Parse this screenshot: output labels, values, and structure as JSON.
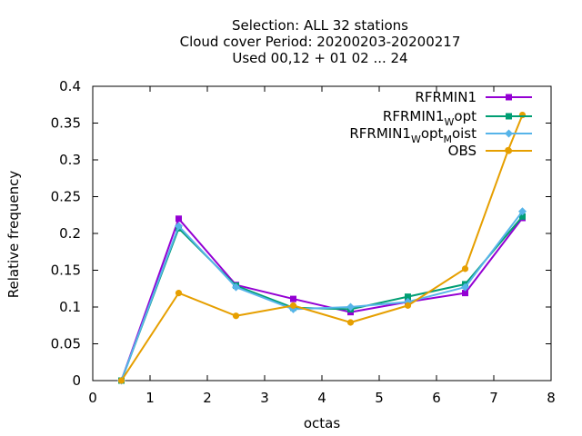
{
  "chart_data": {
    "type": "line",
    "title_lines": [
      "Selection: ALL      32 stations",
      "Cloud cover  Period: 20200203-20200217",
      "Used  00,12  + 01 02 ... 24"
    ],
    "xlabel": "octas",
    "ylabel": "Relative frequency",
    "xlim": [
      0,
      8
    ],
    "ylim": [
      0,
      0.4
    ],
    "xticks": [
      0,
      1,
      2,
      3,
      4,
      5,
      6,
      7,
      8
    ],
    "xtick_labels": [
      "0",
      "1",
      "2",
      "3",
      "4",
      "5",
      "6",
      "7",
      "8"
    ],
    "yticks": [
      0,
      0.05,
      0.1,
      0.15,
      0.2,
      0.25,
      0.3,
      0.35,
      0.4
    ],
    "ytick_labels": [
      "0",
      "0.05",
      "0.1",
      "0.15",
      "0.2",
      "0.25",
      "0.3",
      "0.35",
      "0.4"
    ],
    "grid": false,
    "legend_position": "top-right",
    "series": [
      {
        "name": "RFRMIN1",
        "legend_parts": [
          {
            "text": "RFRMIN1",
            "sub": false
          }
        ],
        "color": "#9400d3",
        "marker": "square",
        "x": [
          0.5,
          1.5,
          2.5,
          3.5,
          4.5,
          5.5,
          6.5,
          7.5
        ],
        "y": [
          0.0,
          0.22,
          0.13,
          0.111,
          0.093,
          0.107,
          0.119,
          0.221
        ]
      },
      {
        "name": "RFRMIN1Wopt",
        "legend_parts": [
          {
            "text": "RFRMIN1",
            "sub": false
          },
          {
            "text": "W",
            "sub": true
          },
          {
            "text": "opt",
            "sub": false
          }
        ],
        "color": "#009e73",
        "marker": "square",
        "x": [
          0.5,
          1.5,
          2.5,
          3.5,
          4.5,
          5.5,
          6.5,
          7.5
        ],
        "y": [
          0.0,
          0.207,
          0.129,
          0.099,
          0.097,
          0.114,
          0.131,
          0.223
        ]
      },
      {
        "name": "RFRMIN1WoptMoist",
        "legend_parts": [
          {
            "text": "RFRMIN1",
            "sub": false
          },
          {
            "text": "W",
            "sub": true
          },
          {
            "text": "opt",
            "sub": false
          },
          {
            "text": "M",
            "sub": true
          },
          {
            "text": "oist",
            "sub": false
          }
        ],
        "color": "#56b4e9",
        "marker": "diamond",
        "x": [
          0.5,
          1.5,
          2.5,
          3.5,
          4.5,
          5.5,
          6.5,
          7.5
        ],
        "y": [
          0.0,
          0.21,
          0.127,
          0.097,
          0.1,
          0.107,
          0.127,
          0.23
        ]
      },
      {
        "name": "OBS",
        "legend_parts": [
          {
            "text": "OBS",
            "sub": false
          }
        ],
        "color": "#e69f00",
        "marker": "circle",
        "x": [
          0.5,
          1.5,
          2.5,
          3.5,
          4.5,
          5.5,
          6.5,
          7.25,
          7.5
        ],
        "y": [
          0.0,
          0.119,
          0.088,
          0.102,
          0.079,
          0.102,
          0.152,
          0.313,
          0.361
        ]
      }
    ]
  }
}
